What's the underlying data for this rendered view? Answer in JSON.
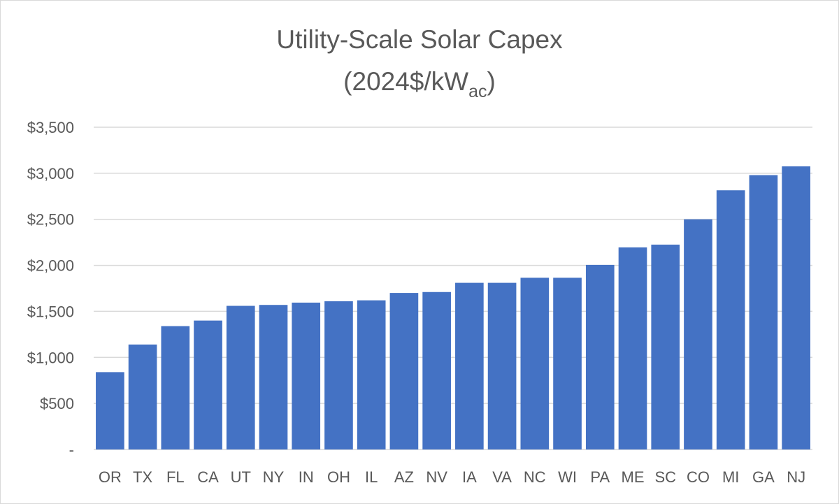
{
  "chart_data": {
    "type": "bar",
    "title": "Utility-Scale Solar Capex",
    "subtitle_prefix": "(2024$/kW",
    "subtitle_subscript": "ac",
    "subtitle_suffix": ")",
    "xlabel": "",
    "ylabel": "",
    "categories": [
      "OR",
      "TX",
      "FL",
      "CA",
      "UT",
      "NY",
      "IN",
      "OH",
      "IL",
      "AZ",
      "NV",
      "IA",
      "VA",
      "NC",
      "WI",
      "PA",
      "ME",
      "SC",
      "CO",
      "MI",
      "GA",
      "NJ"
    ],
    "values": [
      840,
      1140,
      1340,
      1400,
      1560,
      1570,
      1595,
      1610,
      1620,
      1700,
      1710,
      1810,
      1810,
      1865,
      1865,
      2005,
      2195,
      2225,
      2500,
      2815,
      2980,
      3075
    ],
    "ylim": [
      0,
      3500
    ],
    "yticks": [
      0,
      500,
      1000,
      1500,
      2000,
      2500,
      3000,
      3500
    ],
    "ytick_labels": [
      "-",
      "$500",
      "$1,000",
      "$1,500",
      "$2,000",
      "$2,500",
      "$3,000",
      "$3,500"
    ],
    "grid": true,
    "legend": "none",
    "bar_color": "#4472c4",
    "grid_color": "#d9d9d9",
    "text_color": "#595959"
  }
}
